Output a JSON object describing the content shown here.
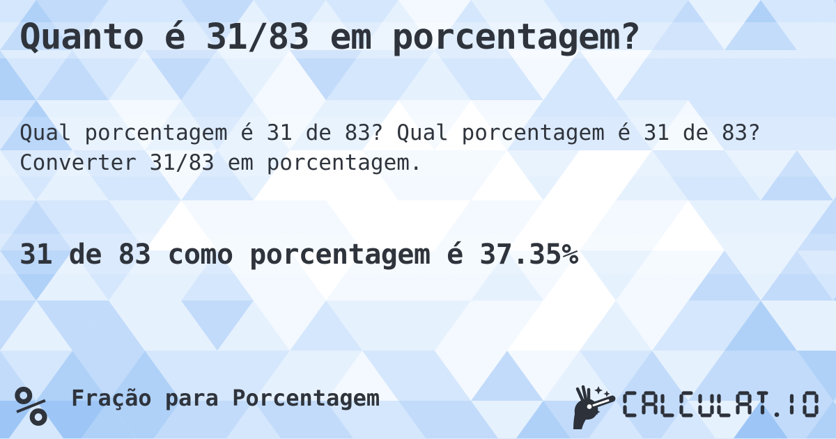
{
  "page": {
    "title": "Quanto é 31/83 em porcentagem?",
    "description": "Qual porcentagem é 31 de 83? Qual porcentagem é 31 de 83? Converter 31/83 em porcentagem.",
    "answer_heading": "31 de 83 como porcentagem é 37.35%"
  },
  "footer": {
    "percent_icon_glyph": "%",
    "category_label": "Fração para Porcentagem",
    "brand_logo_text": "CALCULAT.IO",
    "icons": {
      "category": "percent-icon",
      "brand": "magic-wand-hand-icon"
    }
  },
  "theme": {
    "ink_color": "#2f343c",
    "background_palette": [
      "#ffffff",
      "#f4f9ff",
      "#e6f1fe",
      "#d5e7fc",
      "#c2dbfa",
      "#afd1f8",
      "#9dc6f6"
    ]
  }
}
